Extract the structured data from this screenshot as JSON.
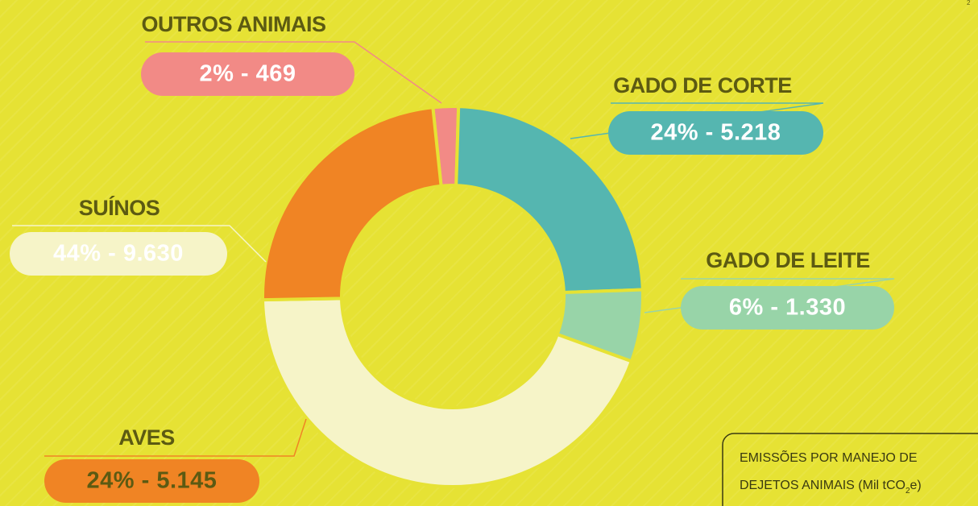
{
  "chart_data": {
    "type": "donut",
    "categories": [
      "OUTROS ANIMAIS",
      "GADO DE CORTE",
      "GADO DE LEITE",
      "SUÍNOS",
      "AVES"
    ],
    "values": [
      469,
      5218,
      1330,
      9630,
      5145
    ],
    "value_labels": [
      "2% - 469",
      "24% - 5.218",
      "6% - 1.330",
      "44% - 9.630",
      "24% - 5.145"
    ],
    "colors": [
      "#f28a86",
      "#55b6b0",
      "#98d4a8",
      "#f6f4c8",
      "#f08424"
    ],
    "title": {
      "line1": "EMISSÕES POR MANEJO DE",
      "line2_before": "DEJETOS ANIMAIS (Mil tCO",
      "subscript": "2",
      "line2_after": "e)"
    },
    "page_number": "2"
  }
}
